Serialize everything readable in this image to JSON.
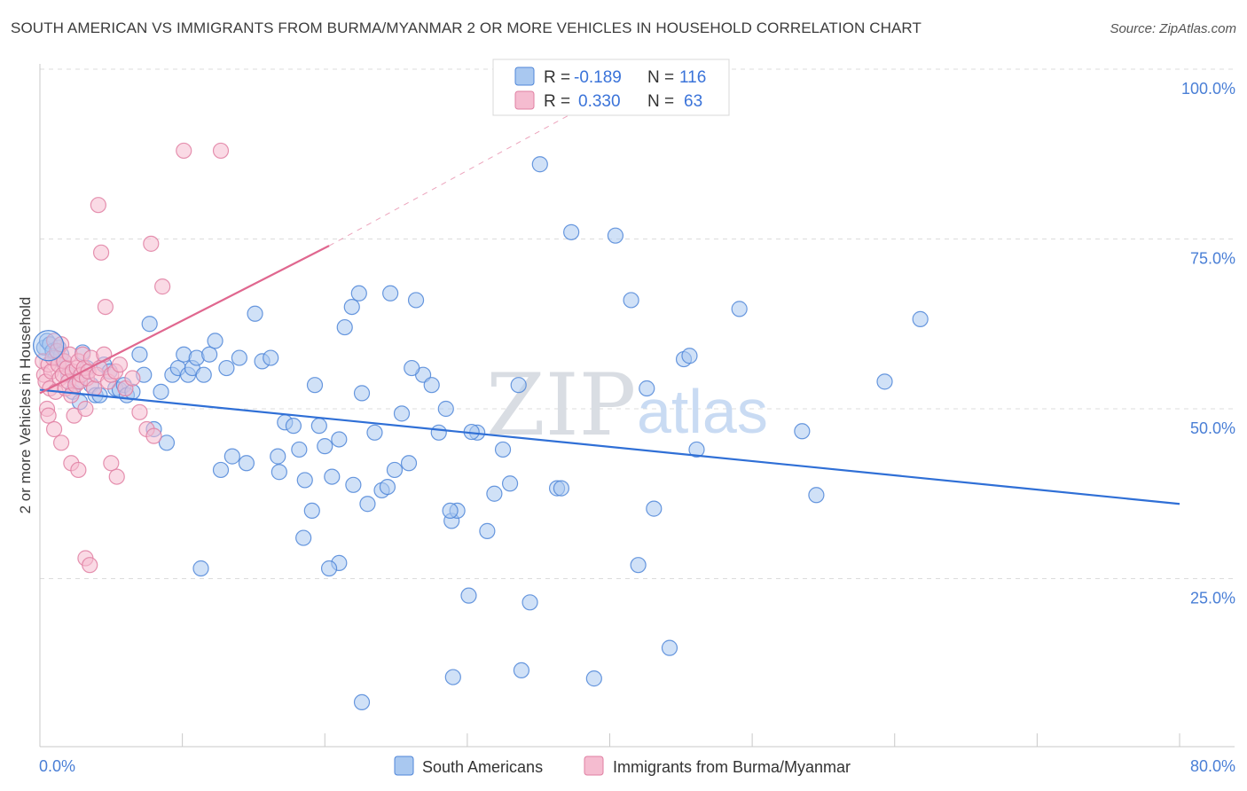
{
  "header": {
    "title": "SOUTH AMERICAN VS IMMIGRANTS FROM BURMA/MYANMAR 2 OR MORE VEHICLES IN HOUSEHOLD CORRELATION CHART",
    "source": "Source: ZipAtlas.com"
  },
  "stats": {
    "r_label": "R =",
    "n_label": "N =",
    "south_american": {
      "r": "-0.189",
      "n": "116"
    },
    "burma": {
      "r": "0.330",
      "n": "63"
    }
  },
  "watermark": {
    "zip": "ZIP",
    "atlas": "atlas"
  },
  "colors": {
    "blue_fill": "#a9c8f0",
    "blue_stroke": "#4f86d8",
    "blue_line": "#2f6fd6",
    "pink_fill": "#f5bcd0",
    "pink_stroke": "#e07fa2",
    "pink_line": "#e0678f",
    "grid": "#dcdcdc",
    "axis_label": "#4a7fd6"
  },
  "chart_data": {
    "type": "scatter",
    "title": "SOUTH AMERICAN VS IMMIGRANTS FROM BURMA/MYANMAR 2 OR MORE VEHICLES IN HOUSEHOLD CORRELATION CHART",
    "xlabel": "",
    "ylabel": "2 or more Vehicles in Household",
    "xlim": [
      0,
      80
    ],
    "ylim": [
      0,
      100
    ],
    "x_tick_labels": [
      "0.0%",
      "80.0%"
    ],
    "y_ticks": [
      25,
      50,
      75,
      100
    ],
    "y_tick_labels": [
      "25.0%",
      "50.0%",
      "75.0%",
      "100.0%"
    ],
    "grid": true,
    "legend": [
      "South Americans",
      "Immigrants from Burma/Myanmar"
    ],
    "series": [
      {
        "name": "South Americans",
        "r": -0.189,
        "n": 116,
        "trend": {
          "x": [
            0,
            80
          ],
          "y": [
            52.8,
            36.0
          ]
        },
        "points": [
          [
            0.3,
            59
          ],
          [
            0.5,
            60
          ],
          [
            0.7,
            59.5
          ],
          [
            0.9,
            58.5
          ],
          [
            1.1,
            57.5
          ],
          [
            1.3,
            59
          ],
          [
            1.5,
            58
          ],
          [
            1.7,
            57
          ],
          [
            2.0,
            55
          ],
          [
            2.3,
            52.5
          ],
          [
            2.6,
            54
          ],
          [
            2.8,
            51
          ],
          [
            3.0,
            58.3
          ],
          [
            3.3,
            56
          ],
          [
            3.6,
            53.5
          ],
          [
            3.9,
            52
          ],
          [
            4.2,
            52
          ],
          [
            4.5,
            56.5
          ],
          [
            4.9,
            55.5
          ],
          [
            5.3,
            53
          ],
          [
            5.6,
            52.8
          ],
          [
            5.9,
            53.5
          ],
          [
            6.1,
            52
          ],
          [
            6.5,
            52.5
          ],
          [
            7.0,
            58
          ],
          [
            7.3,
            55
          ],
          [
            7.7,
            62.5
          ],
          [
            8.0,
            47
          ],
          [
            8.5,
            52.5
          ],
          [
            8.9,
            45
          ],
          [
            9.3,
            55
          ],
          [
            9.7,
            56
          ],
          [
            10.1,
            58
          ],
          [
            10.4,
            55
          ],
          [
            10.7,
            56
          ],
          [
            11.0,
            57.5
          ],
          [
            11.5,
            55
          ],
          [
            11.9,
            58
          ],
          [
            12.3,
            60
          ],
          [
            12.7,
            41
          ],
          [
            13.1,
            56
          ],
          [
            13.5,
            43
          ],
          [
            14.0,
            57.5
          ],
          [
            14.5,
            42
          ],
          [
            15.1,
            64
          ],
          [
            15.6,
            57
          ],
          [
            16.2,
            57.5
          ],
          [
            16.7,
            43
          ],
          [
            17.2,
            48
          ],
          [
            17.8,
            47.5
          ],
          [
            18.2,
            44
          ],
          [
            18.6,
            39.5
          ],
          [
            19.1,
            35
          ],
          [
            19.6,
            47.5
          ],
          [
            20.0,
            44.5
          ],
          [
            20.5,
            40
          ],
          [
            21.0,
            45.5
          ],
          [
            21.4,
            62
          ],
          [
            21.9,
            65
          ],
          [
            22.4,
            67
          ],
          [
            22.0,
            38.8
          ],
          [
            22.6,
            52.3
          ],
          [
            23.0,
            36
          ],
          [
            23.5,
            46.5
          ],
          [
            24.0,
            38
          ],
          [
            24.4,
            38.5
          ],
          [
            24.9,
            41
          ],
          [
            25.4,
            49.3
          ],
          [
            25.9,
            42
          ],
          [
            26.4,
            66
          ],
          [
            26.9,
            55
          ],
          [
            27.5,
            53.5
          ],
          [
            28.0,
            46.5
          ],
          [
            28.5,
            50
          ],
          [
            28.9,
            33.5
          ],
          [
            29.3,
            35
          ],
          [
            30.1,
            22.5
          ],
          [
            30.7,
            46.5
          ],
          [
            31.4,
            32
          ],
          [
            31.9,
            37.5
          ],
          [
            32.5,
            44
          ],
          [
            33.0,
            39
          ],
          [
            33.6,
            53.5
          ],
          [
            34.4,
            21.5
          ],
          [
            35.1,
            86
          ],
          [
            36.3,
            38.3
          ],
          [
            36.6,
            38.3
          ],
          [
            37.3,
            76
          ],
          [
            38.9,
            10.3
          ],
          [
            40.4,
            75.5
          ],
          [
            41.5,
            66
          ],
          [
            42.0,
            27
          ],
          [
            42.6,
            53
          ],
          [
            43.1,
            35.3
          ],
          [
            44.2,
            14.8
          ],
          [
            45.2,
            57.3
          ],
          [
            45.6,
            57.8
          ],
          [
            46.1,
            44
          ],
          [
            49.1,
            64.7
          ],
          [
            53.5,
            46.7
          ],
          [
            54.5,
            37.3
          ],
          [
            59.3,
            54
          ],
          [
            61.8,
            63.2
          ],
          [
            28.8,
            35
          ],
          [
            29.0,
            10.5
          ],
          [
            16.8,
            40.7
          ],
          [
            18.5,
            31
          ],
          [
            21.0,
            27.3
          ],
          [
            33.8,
            11.5
          ],
          [
            20.3,
            26.5
          ],
          [
            24.6,
            67
          ],
          [
            19.3,
            53.5
          ],
          [
            11.3,
            26.5
          ],
          [
            26.1,
            56
          ],
          [
            22.6,
            6.8
          ],
          [
            30.3,
            46.6
          ]
        ]
      },
      {
        "name": "Immigrants from Burma/Myanmar",
        "r": 0.33,
        "n": 63,
        "trend": {
          "x": [
            0,
            20.3
          ],
          "y": [
            52.3,
            74.0
          ]
        },
        "trend_extension": {
          "x": [
            20.3,
            40
          ],
          "y": [
            74.0,
            96.5
          ]
        },
        "points": [
          [
            0.2,
            57
          ],
          [
            0.3,
            55
          ],
          [
            0.4,
            54
          ],
          [
            0.5,
            50
          ],
          [
            0.6,
            56.5
          ],
          [
            0.7,
            53
          ],
          [
            0.8,
            55.5
          ],
          [
            0.9,
            57.5
          ],
          [
            1.0,
            60
          ],
          [
            1.1,
            52.5
          ],
          [
            1.2,
            58.5
          ],
          [
            1.3,
            56.5
          ],
          [
            1.4,
            54.5
          ],
          [
            1.5,
            59.5
          ],
          [
            1.6,
            55
          ],
          [
            1.7,
            57
          ],
          [
            1.8,
            53
          ],
          [
            1.9,
            56
          ],
          [
            2.0,
            54
          ],
          [
            2.1,
            58
          ],
          [
            2.2,
            52
          ],
          [
            2.3,
            55.5
          ],
          [
            2.4,
            49
          ],
          [
            2.5,
            53.5
          ],
          [
            2.6,
            56
          ],
          [
            2.7,
            57
          ],
          [
            2.8,
            54
          ],
          [
            2.9,
            55
          ],
          [
            3.0,
            58
          ],
          [
            3.1,
            56
          ],
          [
            3.2,
            50
          ],
          [
            3.3,
            54.5
          ],
          [
            3.4,
            55.5
          ],
          [
            3.6,
            57.5
          ],
          [
            3.8,
            53
          ],
          [
            4.0,
            55
          ],
          [
            4.2,
            56
          ],
          [
            4.5,
            58
          ],
          [
            4.8,
            54
          ],
          [
            5.0,
            55
          ],
          [
            5.3,
            55.5
          ],
          [
            5.6,
            56.5
          ],
          [
            6.0,
            53
          ],
          [
            6.5,
            54.5
          ],
          [
            7.0,
            49.5
          ],
          [
            7.5,
            47
          ],
          [
            8.0,
            46
          ],
          [
            0.6,
            49
          ],
          [
            1.0,
            47
          ],
          [
            1.5,
            45
          ],
          [
            2.2,
            42
          ],
          [
            2.7,
            41
          ],
          [
            3.2,
            28
          ],
          [
            3.5,
            27
          ],
          [
            4.1,
            80
          ],
          [
            4.3,
            73
          ],
          [
            4.6,
            65
          ],
          [
            5.0,
            42
          ],
          [
            5.4,
            40
          ],
          [
            7.8,
            74.3
          ],
          [
            8.6,
            68
          ],
          [
            10.1,
            88
          ],
          [
            12.7,
            88
          ]
        ]
      }
    ]
  }
}
